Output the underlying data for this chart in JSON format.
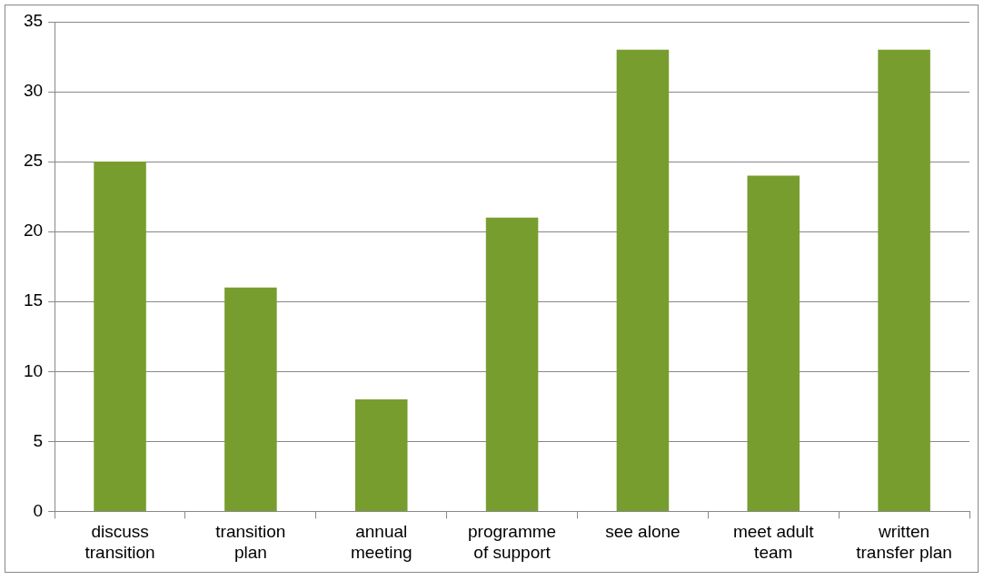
{
  "chart_data": {
    "type": "bar",
    "categories": [
      "discuss\ntransition",
      "transition\nplan",
      "annual\nmeeting",
      "programme\nof support",
      "see alone",
      "meet adult\nteam",
      "written\ntransfer plan"
    ],
    "values": [
      25,
      16,
      8,
      21,
      33,
      24,
      33
    ],
    "color": "#789d2f",
    "ylim": [
      0,
      35
    ],
    "yticks": [
      0,
      5,
      10,
      15,
      20,
      25,
      30,
      35
    ],
    "grid": "y",
    "legend": false
  }
}
